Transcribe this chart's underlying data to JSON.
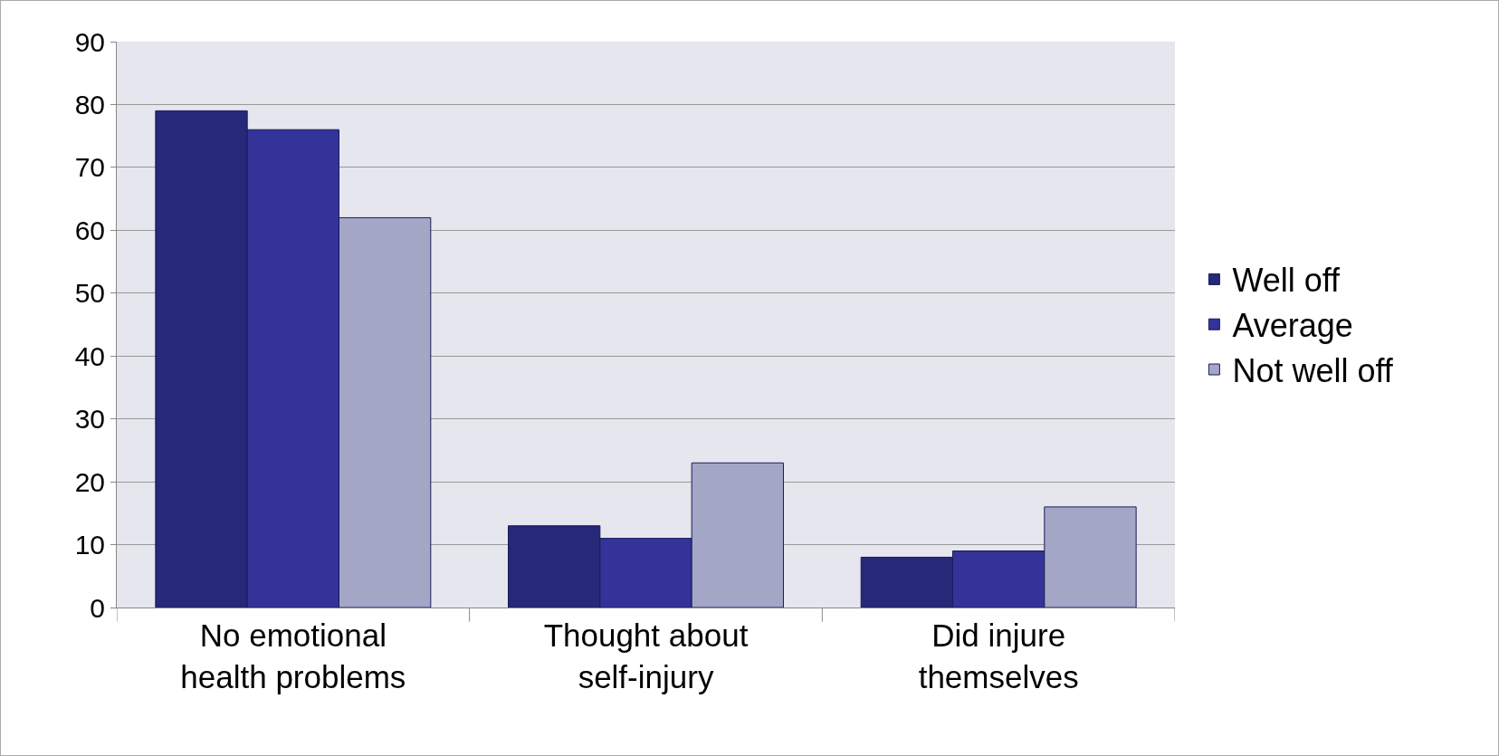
{
  "chart_data": {
    "type": "bar",
    "categories": [
      "No emotional health problems",
      "Thought about self-injury",
      "Did injure themselves"
    ],
    "series": [
      {
        "name": "Well off",
        "color": "#262878",
        "values": [
          79,
          13,
          8
        ]
      },
      {
        "name": "Average",
        "color": "#333399",
        "values": [
          76,
          11,
          9
        ]
      },
      {
        "name": "Not well off",
        "color": "#a4a6c6",
        "values": [
          62,
          23,
          16
        ]
      }
    ],
    "ylim": [
      0,
      90
    ],
    "yticks": [
      0,
      10,
      20,
      30,
      40,
      50,
      60,
      70,
      80,
      90
    ],
    "grid": "y",
    "legend": "right"
  }
}
